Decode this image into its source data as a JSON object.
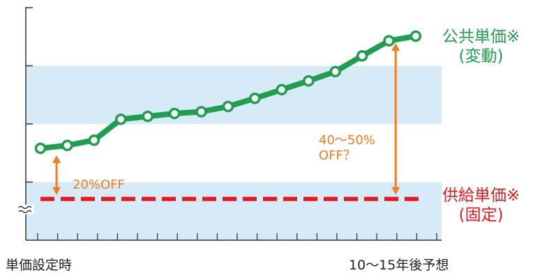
{
  "chart_data": {
    "type": "line",
    "title": "",
    "xlabel": "",
    "ylabel": "",
    "x_tick_labels": [
      "単価設定時",
      "10〜15年後予想"
    ],
    "ylim": [
      0,
      4
    ],
    "grid": false,
    "bands": [
      {
        "from": 0,
        "to": 1,
        "color": "#d6eaf8"
      },
      {
        "from": 2,
        "to": 3,
        "color": "#d6eaf8"
      }
    ],
    "series": [
      {
        "name": "公共単価※(変動)",
        "label_lines": [
          "公共単価※",
          "(変動)"
        ],
        "color": "#1e9e4e",
        "style": "solid",
        "x": [
          0,
          1,
          2,
          3,
          4,
          5,
          6,
          7,
          8,
          9,
          10,
          11,
          12,
          13,
          14
        ],
        "values": [
          1.58,
          1.63,
          1.72,
          2.08,
          2.13,
          2.18,
          2.21,
          2.3,
          2.44,
          2.59,
          2.74,
          2.9,
          3.17,
          3.43,
          3.51
        ]
      },
      {
        "name": "供給単価※(固定)",
        "label_lines": [
          "供給単価※",
          "(固定)"
        ],
        "color": "#e8181e",
        "style": "dashed",
        "x": [
          0,
          14
        ],
        "values": [
          0.71,
          0.71
        ]
      }
    ],
    "annotations": [
      {
        "text_lines": [
          "20%OFF"
        ],
        "x": 0.6,
        "from": 0.71,
        "to": 1.58,
        "color": "#f07d1e"
      },
      {
        "text_lines": [
          "40〜50%",
          "OFF？"
        ],
        "x": 13.25,
        "from": 0.71,
        "to": 3.51,
        "color": "#f07d1e"
      }
    ]
  }
}
